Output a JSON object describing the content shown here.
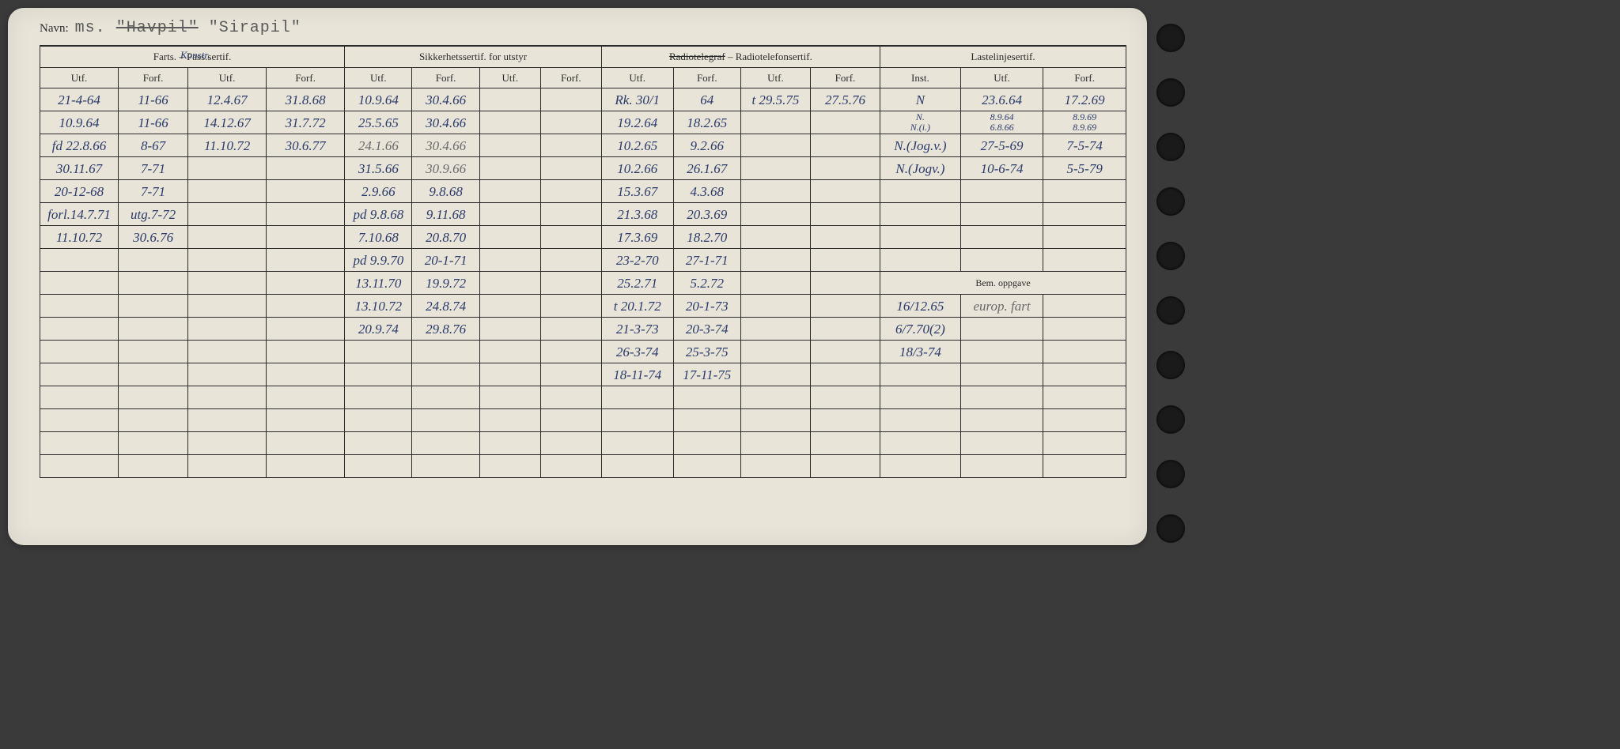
{
  "colors": {
    "card_bg": "#e8e4d8",
    "page_bg": "#3a3a3a",
    "ink_blue": "#2a3a6a",
    "ink_pencil": "#6a6a6a",
    "print_black": "#2a2a2a"
  },
  "navn": {
    "label": "Navn:",
    "prefix": "ms.",
    "struck": "\"Havpil\"",
    "name": "\"Sirapil\""
  },
  "groups": [
    "Farts. – Pass.sertif.",
    "Sikkerhetssertif. for utstyr",
    "Radiotelegraf – Radiotelefonsertif.",
    "Lastelinjesertif."
  ],
  "group_annotation": "Konstr.",
  "subheaders": [
    "Utf.",
    "Forf.",
    "Utf.",
    "Forf.",
    "Utf.",
    "Forf.",
    "Utf.",
    "Forf.",
    "Utf.",
    "Forf.",
    "Utf.",
    "Forf.",
    "Inst.",
    "Utf.",
    "Forf."
  ],
  "bem_header": "Bem. oppgave",
  "rows": [
    [
      "21-4-64",
      "11-66",
      "12.4.67",
      "31.8.68",
      "10.9.64",
      "30.4.66",
      "",
      "",
      "Rk. 30/1",
      "64",
      "t 29.5.75",
      "27.5.76",
      "N",
      "23.6.64",
      "17.2.69"
    ],
    [
      "10.9.64",
      "11-66",
      "14.12.67",
      "31.7.72",
      "25.5.65",
      "30.4.66",
      "",
      "",
      "19.2.64",
      "18.2.65",
      "",
      "",
      "N.\nN.(i.)",
      "8.9.64\n6.8.66",
      "8.9.69\n8.9.69"
    ],
    [
      "fd 22.8.66",
      "8-67",
      "11.10.72",
      "30.6.77",
      "24.1.66",
      "30.4.66",
      "",
      "",
      "10.2.65",
      "9.2.66",
      "",
      "",
      "N.(Jog.v.)",
      "27-5-69",
      "7-5-74"
    ],
    [
      "30.11.67",
      "7-71",
      "",
      "",
      "31.5.66",
      "30.9.66",
      "",
      "",
      "10.2.66",
      "26.1.67",
      "",
      "",
      "N.(Jogv.)",
      "10-6-74",
      "5-5-79"
    ],
    [
      "20-12-68",
      "7-71",
      "",
      "",
      "2.9.66",
      "9.8.68",
      "",
      "",
      "15.3.67",
      "4.3.68",
      "",
      "",
      "",
      "",
      ""
    ],
    [
      "forl.14.7.71",
      "utg.7-72",
      "",
      "",
      "pd 9.8.68",
      "9.11.68",
      "",
      "",
      "21.3.68",
      "20.3.69",
      "",
      "",
      "",
      "",
      ""
    ],
    [
      "11.10.72",
      "30.6.76",
      "",
      "",
      "7.10.68",
      "20.8.70",
      "",
      "",
      "17.3.69",
      "18.2.70",
      "",
      "",
      "",
      "",
      ""
    ],
    [
      "",
      "",
      "",
      "",
      "pd 9.9.70",
      "20-1-71",
      "",
      "",
      "23-2-70",
      "27-1-71",
      "",
      "",
      "",
      "",
      ""
    ],
    [
      "",
      "",
      "",
      "",
      "13.11.70",
      "19.9.72",
      "",
      "",
      "25.2.71",
      "5.2.72",
      "",
      "",
      "",
      "",
      ""
    ],
    [
      "",
      "",
      "",
      "",
      "13.10.72",
      "24.8.74",
      "",
      "",
      "t 20.1.72",
      "20-1-73",
      "",
      "",
      "16/12.65",
      "europ. fart",
      ""
    ],
    [
      "",
      "",
      "",
      "",
      "20.9.74",
      "29.8.76",
      "",
      "",
      "21-3-73",
      "20-3-74",
      "",
      "",
      "6/7.70(2)",
      "",
      ""
    ],
    [
      "",
      "",
      "",
      "",
      "",
      "",
      "",
      "",
      "26-3-74",
      "25-3-75",
      "",
      "",
      "18/3-74",
      "",
      ""
    ],
    [
      "",
      "",
      "",
      "",
      "",
      "",
      "",
      "",
      "18-11-74",
      "17-11-75",
      "",
      "",
      "",
      "",
      ""
    ],
    [
      "",
      "",
      "",
      "",
      "",
      "",
      "",
      "",
      "",
      "",
      "",
      "",
      "",
      "",
      ""
    ],
    [
      "",
      "",
      "",
      "",
      "",
      "",
      "",
      "",
      "",
      "",
      "",
      "",
      "",
      "",
      ""
    ],
    [
      "",
      "",
      "",
      "",
      "",
      "",
      "",
      "",
      "",
      "",
      "",
      "",
      "",
      "",
      ""
    ],
    [
      "",
      "",
      "",
      "",
      "",
      "",
      "",
      "",
      "",
      "",
      "",
      "",
      "",
      "",
      ""
    ]
  ],
  "bem_start_row": 8,
  "pencil_cells": [
    [
      2,
      4
    ],
    [
      2,
      5
    ],
    [
      3,
      5
    ],
    [
      9,
      13
    ]
  ],
  "multiline_cells": [
    [
      1,
      12
    ],
    [
      1,
      13
    ],
    [
      1,
      14
    ]
  ]
}
